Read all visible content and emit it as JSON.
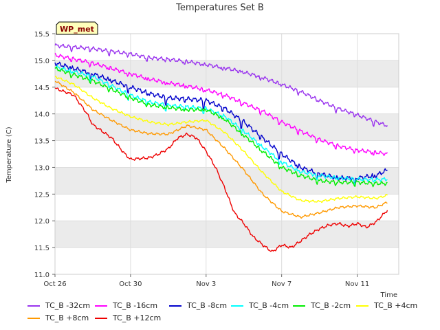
{
  "chart_data": {
    "type": "line",
    "title": "Temperatures Set B",
    "xlabel": "Time",
    "ylabel": "Temperature (C)",
    "badge": "WP_met",
    "ylim": [
      11.0,
      15.5
    ],
    "xlim": [
      0,
      18.2
    ],
    "yticks": [
      11.0,
      11.5,
      12.0,
      12.5,
      13.0,
      13.5,
      14.0,
      14.5,
      15.0,
      15.5
    ],
    "ytick_labels": [
      "11.0",
      "11.5",
      "12.0",
      "12.5",
      "13.0",
      "13.5",
      "14.0",
      "14.5",
      "15.0",
      "15.5"
    ],
    "xticks": [
      0,
      4,
      8,
      12,
      16
    ],
    "xtick_labels": [
      "Oct 26",
      "Oct 30",
      "Nov 3",
      "Nov 7",
      "Nov 11"
    ],
    "x_units": "days since Oct 26",
    "colors": {
      "band": "#ebebeb",
      "grid": "#dddddd",
      "badge_fill": "#ffffbb",
      "badge_text": "#880000"
    },
    "series": [
      {
        "name": "TC_B -32cm",
        "color": "#9933ee",
        "x": [
          0,
          2,
          4,
          5,
          6,
          7,
          8,
          9,
          10,
          11,
          12,
          13,
          14,
          15,
          16,
          17,
          17.6
        ],
        "y": [
          15.28,
          15.22,
          15.12,
          15.05,
          15.02,
          14.98,
          14.92,
          14.86,
          14.78,
          14.68,
          14.55,
          14.42,
          14.25,
          14.1,
          13.98,
          13.85,
          13.78
        ]
      },
      {
        "name": "TC_B -16cm",
        "color": "#ff00ff",
        "x": [
          0,
          2,
          4,
          5,
          6,
          7,
          8,
          9,
          10,
          11,
          12,
          13,
          14,
          15,
          16,
          17,
          17.6
        ],
        "y": [
          15.1,
          14.95,
          14.75,
          14.65,
          14.58,
          14.52,
          14.45,
          14.35,
          14.2,
          14.05,
          13.85,
          13.68,
          13.52,
          13.4,
          13.32,
          13.28,
          13.25
        ]
      },
      {
        "name": "TC_B -8cm",
        "color": "#0000cc",
        "x": [
          0,
          2,
          4,
          5,
          6,
          7,
          8,
          9,
          10,
          11,
          12,
          13,
          14,
          15,
          16,
          17,
          17.6
        ],
        "y": [
          14.95,
          14.75,
          14.5,
          14.38,
          14.3,
          14.28,
          14.25,
          14.1,
          13.85,
          13.55,
          13.25,
          13.0,
          12.88,
          12.8,
          12.8,
          12.85,
          12.95
        ]
      },
      {
        "name": "TC_B -4cm",
        "color": "#00ffff",
        "x": [
          0,
          2,
          4,
          5,
          6,
          7,
          8,
          9,
          10,
          11,
          12,
          13,
          14,
          15,
          16,
          17,
          17.6
        ],
        "y": [
          14.88,
          14.7,
          14.35,
          14.22,
          14.16,
          14.13,
          14.1,
          13.95,
          13.68,
          13.38,
          13.1,
          12.92,
          12.85,
          12.8,
          12.78,
          12.77,
          12.78
        ]
      },
      {
        "name": "TC_B -2cm",
        "color": "#00ee00",
        "x": [
          0,
          2,
          4,
          5,
          6,
          7,
          8,
          9,
          10,
          11,
          12,
          13,
          14,
          15,
          16,
          17,
          17.6
        ],
        "y": [
          14.85,
          14.62,
          14.3,
          14.17,
          14.12,
          14.08,
          14.08,
          13.9,
          13.6,
          13.3,
          13.0,
          12.85,
          12.75,
          12.72,
          12.72,
          12.7,
          12.7
        ]
      },
      {
        "name": "TC_B +4cm",
        "color": "#ffff00",
        "x": [
          0,
          1,
          2,
          3,
          4,
          5,
          6,
          7,
          8,
          9,
          10,
          11,
          12,
          13,
          14,
          15,
          16,
          17,
          17.6
        ],
        "y": [
          14.7,
          14.55,
          14.3,
          14.1,
          13.95,
          13.85,
          13.8,
          13.85,
          13.88,
          13.65,
          13.3,
          12.9,
          12.55,
          12.38,
          12.36,
          12.42,
          12.45,
          12.42,
          12.48
        ]
      },
      {
        "name": "TC_B +8cm",
        "color": "#ff9900",
        "x": [
          0,
          1,
          2,
          3,
          4,
          5,
          6,
          7,
          8,
          9,
          10,
          11,
          12,
          13,
          14,
          15,
          16,
          17,
          17.6
        ],
        "y": [
          14.62,
          14.4,
          14.08,
          13.88,
          13.7,
          13.63,
          13.62,
          13.78,
          13.7,
          13.35,
          12.95,
          12.5,
          12.18,
          12.07,
          12.15,
          12.25,
          12.28,
          12.25,
          12.35
        ]
      },
      {
        "name": "TC_B +12cm",
        "color": "#ee0000",
        "x": [
          0,
          1,
          1.7,
          2,
          3,
          3.7,
          4,
          5,
          5.5,
          6,
          6.5,
          7,
          7.5,
          8,
          8.5,
          9,
          9.5,
          10,
          10.5,
          11,
          11.5,
          12,
          12.5,
          13,
          13.5,
          14,
          14.5,
          15,
          15.5,
          16,
          16.5,
          17,
          17.6
        ],
        "y": [
          14.48,
          14.35,
          14.0,
          13.8,
          13.55,
          13.25,
          13.15,
          13.18,
          13.25,
          13.35,
          13.55,
          13.62,
          13.55,
          13.3,
          13.0,
          12.6,
          12.15,
          11.95,
          11.7,
          11.55,
          11.42,
          11.55,
          11.5,
          11.62,
          11.75,
          11.85,
          11.92,
          11.95,
          11.9,
          11.95,
          11.88,
          11.98,
          12.2
        ]
      }
    ]
  }
}
